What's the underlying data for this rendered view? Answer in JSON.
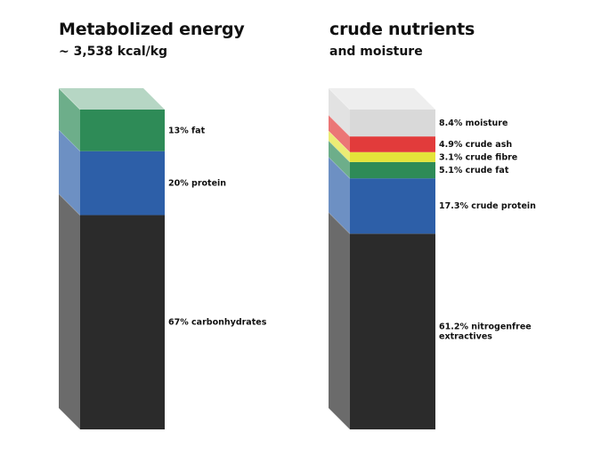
{
  "chart_data": [
    {
      "type": "stacked-column-3d",
      "title": "Metabolized energy",
      "subtitle": "~ 3,538 kcal/kg",
      "segments": [
        {
          "label": "67% carbonhydrates",
          "value": 67,
          "color": "#2b2b2b"
        },
        {
          "label": "20% protein",
          "value": 20,
          "color": "#2d5fa8"
        },
        {
          "label": "13% fat",
          "value": 13,
          "color": "#2e8b57"
        }
      ]
    },
    {
      "type": "stacked-column-3d",
      "title": "crude nutrients",
      "subtitle": "and moisture",
      "segments": [
        {
          "label": [
            "61.2% nitrogenfree",
            "extractives"
          ],
          "value": 61.2,
          "color": "#2b2b2b"
        },
        {
          "label": "17.3% crude protein",
          "value": 17.3,
          "color": "#2d5fa8"
        },
        {
          "label": "5.1% crude fat",
          "value": 5.1,
          "color": "#2e8b57"
        },
        {
          "label": "3.1% crude fibre",
          "value": 3.1,
          "color": "#e4e43a"
        },
        {
          "label": "4.9% crude ash",
          "value": 4.9,
          "color": "#e23b3b"
        },
        {
          "label": "8.4% moisture",
          "value": 8.4,
          "color": "#cfcfcf"
        }
      ]
    }
  ]
}
